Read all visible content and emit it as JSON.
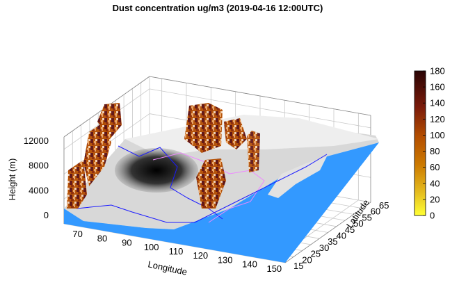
{
  "chart_data": {
    "type": "surface3d",
    "title": "Dust concentration ug/m3 (2019-04-16 12:00UTC)",
    "xlabel": "Longitude",
    "ylabel": "Latitude",
    "zlabel": "Height (m)",
    "x_ticks": [
      70,
      80,
      90,
      100,
      110,
      120,
      130,
      140,
      150
    ],
    "y_ticks": [
      15,
      20,
      25,
      30,
      35,
      40,
      45,
      50,
      55,
      60,
      65
    ],
    "z_ticks": [
      0,
      4000,
      8000,
      12000
    ],
    "xlim": [
      65,
      155
    ],
    "ylim": [
      15,
      65
    ],
    "zlim": [
      0,
      14000
    ],
    "colorbar": {
      "ticks": [
        0,
        20,
        40,
        60,
        80,
        100,
        120,
        140,
        160,
        180
      ],
      "range": [
        0,
        180
      ],
      "colormap": [
        "#ffff33",
        "#e6b800",
        "#cc7a00",
        "#b34d00",
        "#8c2600",
        "#5c0e0e",
        "#2a0505"
      ]
    },
    "grid": true,
    "ocean_color": "#3399ff",
    "dust_regions": [
      {
        "lon": [
          68,
          75
        ],
        "lat": [
          35,
          42
        ],
        "zmax": 14000
      },
      {
        "lon": [
          72,
          80
        ],
        "lat": [
          42,
          52
        ],
        "zmax": 13000
      },
      {
        "lon": [
          102,
          108
        ],
        "lat": [
          45,
          58
        ],
        "zmax": 13000
      },
      {
        "lon": [
          110,
          118
        ],
        "lat": [
          40,
          48
        ],
        "zmax": 9000
      },
      {
        "lon": [
          122,
          128
        ],
        "lat": [
          30,
          40
        ],
        "zmax": 8000
      }
    ]
  }
}
